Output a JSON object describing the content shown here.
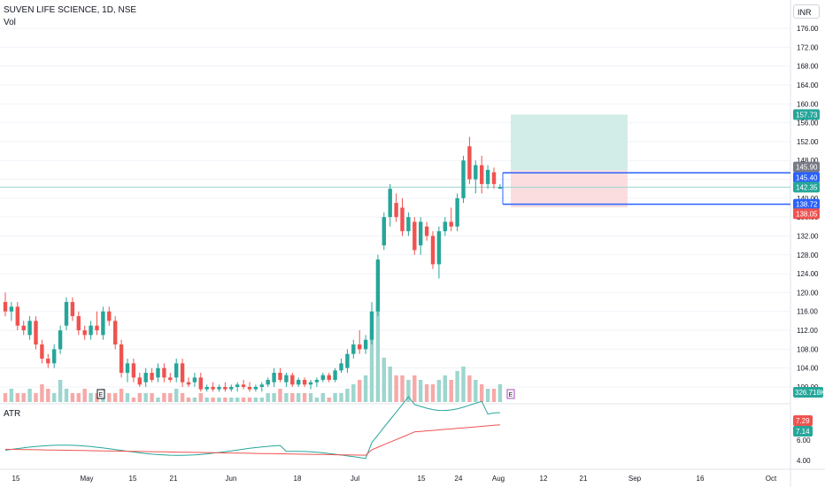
{
  "header": {
    "symbol_line": "SUVEN LIFE SCIENCE, 1D, NSE",
    "volume_label": "Vol",
    "atr_label": "ATR",
    "currency_label": "INR"
  },
  "colors": {
    "up": "#26a69a",
    "down": "#ef5350",
    "target_zone": "#d2ede8",
    "stop_zone": "#fbdde0",
    "line_blue": "#2962ff",
    "atr_green": "#26a69a",
    "atr_red": "#ef5350",
    "grid": "#f0f3fa"
  },
  "chart_data": {
    "type": "candlestick",
    "price_axis": {
      "ylim": [
        98,
        179
      ],
      "ticks": [
        "176.00",
        "172.00",
        "168.00",
        "164.00",
        "160.00",
        "156.00",
        "152.00",
        "148.00",
        "144.00",
        "140.00",
        "136.00",
        "132.00",
        "128.00",
        "124.00",
        "120.00",
        "116.00",
        "112.00",
        "108.00",
        "104.00",
        "100.00"
      ]
    },
    "x_ticks": [
      "15",
      "May",
      "15",
      "21",
      "Jun",
      "18",
      "Jul",
      "15",
      "24",
      "Aug",
      "12",
      "21",
      "Sep",
      "16",
      "Oct"
    ],
    "candles": [
      {
        "o": 118,
        "h": 120,
        "l": 115,
        "c": 116
      },
      {
        "o": 116,
        "h": 118,
        "l": 114,
        "c": 117
      },
      {
        "o": 117,
        "h": 118,
        "l": 112,
        "c": 113
      },
      {
        "o": 113,
        "h": 114,
        "l": 111,
        "c": 112
      },
      {
        "o": 111,
        "h": 115,
        "l": 110,
        "c": 114
      },
      {
        "o": 114,
        "h": 115,
        "l": 108,
        "c": 109
      },
      {
        "o": 109,
        "h": 110,
        "l": 105,
        "c": 106
      },
      {
        "o": 106,
        "h": 107,
        "l": 104,
        "c": 105
      },
      {
        "o": 105,
        "h": 109,
        "l": 104,
        "c": 108
      },
      {
        "o": 108,
        "h": 113,
        "l": 107,
        "c": 112
      },
      {
        "o": 113,
        "h": 119,
        "l": 112,
        "c": 118
      },
      {
        "o": 118,
        "h": 119,
        "l": 114,
        "c": 115
      },
      {
        "o": 115,
        "h": 116,
        "l": 111,
        "c": 112
      },
      {
        "o": 112,
        "h": 113,
        "l": 110,
        "c": 111
      },
      {
        "o": 111,
        "h": 114,
        "l": 110,
        "c": 113
      },
      {
        "o": 113,
        "h": 116,
        "l": 111,
        "c": 112
      },
      {
        "o": 111,
        "h": 117,
        "l": 110,
        "c": 116
      },
      {
        "o": 116,
        "h": 117,
        "l": 113,
        "c": 114
      },
      {
        "o": 114,
        "h": 115,
        "l": 108,
        "c": 109
      },
      {
        "o": 109,
        "h": 110,
        "l": 102,
        "c": 103
      },
      {
        "o": 103,
        "h": 106,
        "l": 101,
        "c": 105
      },
      {
        "o": 105,
        "h": 106,
        "l": 101,
        "c": 102
      },
      {
        "o": 102,
        "h": 103,
        "l": 100,
        "c": 100.5
      },
      {
        "o": 101,
        "h": 104,
        "l": 100,
        "c": 103
      },
      {
        "o": 103,
        "h": 104,
        "l": 101,
        "c": 101.5
      },
      {
        "o": 102,
        "h": 105,
        "l": 101,
        "c": 104
      },
      {
        "o": 104,
        "h": 105,
        "l": 101,
        "c": 102
      },
      {
        "o": 102,
        "h": 103,
        "l": 101,
        "c": 101.5
      },
      {
        "o": 102,
        "h": 106,
        "l": 101,
        "c": 105
      },
      {
        "o": 105,
        "h": 106,
        "l": 100,
        "c": 101
      },
      {
        "o": 101,
        "h": 102,
        "l": 100,
        "c": 100.5
      },
      {
        "o": 101,
        "h": 103,
        "l": 100,
        "c": 102
      },
      {
        "o": 102,
        "h": 103,
        "l": 99,
        "c": 99.5
      },
      {
        "o": 99.5,
        "h": 100.5,
        "l": 99,
        "c": 100
      },
      {
        "o": 100,
        "h": 101,
        "l": 99,
        "c": 99.5
      },
      {
        "o": 99.5,
        "h": 100.5,
        "l": 99,
        "c": 100
      },
      {
        "o": 100,
        "h": 101,
        "l": 99,
        "c": 99.5
      },
      {
        "o": 99.5,
        "h": 100.5,
        "l": 99,
        "c": 100
      },
      {
        "o": 100,
        "h": 101,
        "l": 99,
        "c": 100.5
      },
      {
        "o": 100.5,
        "h": 101.5,
        "l": 99.5,
        "c": 100
      },
      {
        "o": 100,
        "h": 101,
        "l": 99,
        "c": 99.5
      },
      {
        "o": 99.5,
        "h": 100.5,
        "l": 99,
        "c": 100
      },
      {
        "o": 100,
        "h": 101,
        "l": 99,
        "c": 100.5
      },
      {
        "o": 100.5,
        "h": 102,
        "l": 100,
        "c": 101.5
      },
      {
        "o": 101,
        "h": 104,
        "l": 100,
        "c": 103
      },
      {
        "o": 103,
        "h": 104,
        "l": 101,
        "c": 101.5
      },
      {
        "o": 101,
        "h": 103,
        "l": 100,
        "c": 102.5
      },
      {
        "o": 102.5,
        "h": 103,
        "l": 100,
        "c": 100.5
      },
      {
        "o": 100.5,
        "h": 102,
        "l": 100,
        "c": 101.5
      },
      {
        "o": 101.5,
        "h": 102,
        "l": 100,
        "c": 100.5
      },
      {
        "o": 100.5,
        "h": 101.5,
        "l": 99.5,
        "c": 101
      },
      {
        "o": 101,
        "h": 102,
        "l": 100,
        "c": 101.5
      },
      {
        "o": 101.5,
        "h": 103,
        "l": 101,
        "c": 102.5
      },
      {
        "o": 102.5,
        "h": 103,
        "l": 101,
        "c": 101.5
      },
      {
        "o": 101.5,
        "h": 104,
        "l": 101,
        "c": 103.5
      },
      {
        "o": 103.5,
        "h": 106,
        "l": 103,
        "c": 105
      },
      {
        "o": 104,
        "h": 108,
        "l": 103,
        "c": 107
      },
      {
        "o": 107,
        "h": 110,
        "l": 106,
        "c": 109
      },
      {
        "o": 109,
        "h": 112,
        "l": 107,
        "c": 108
      },
      {
        "o": 108,
        "h": 111,
        "l": 107,
        "c": 110
      },
      {
        "o": 110,
        "h": 118,
        "l": 109,
        "c": 116
      },
      {
        "o": 116,
        "h": 128,
        "l": 115,
        "c": 127
      },
      {
        "o": 130,
        "h": 137,
        "l": 129,
        "c": 136
      },
      {
        "o": 136,
        "h": 143,
        "l": 134,
        "c": 142
      },
      {
        "o": 139,
        "h": 141,
        "l": 135,
        "c": 136
      },
      {
        "o": 138,
        "h": 140,
        "l": 132,
        "c": 133
      },
      {
        "o": 133,
        "h": 137,
        "l": 132,
        "c": 136
      },
      {
        "o": 135,
        "h": 136,
        "l": 128,
        "c": 129
      },
      {
        "o": 130,
        "h": 136,
        "l": 128,
        "c": 135
      },
      {
        "o": 134,
        "h": 135,
        "l": 131,
        "c": 132
      },
      {
        "o": 132,
        "h": 133,
        "l": 125,
        "c": 126
      },
      {
        "o": 126,
        "h": 134,
        "l": 123,
        "c": 133
      },
      {
        "o": 133,
        "h": 136,
        "l": 132,
        "c": 135
      },
      {
        "o": 135,
        "h": 138,
        "l": 133,
        "c": 134
      },
      {
        "o": 134,
        "h": 141,
        "l": 133,
        "c": 140
      },
      {
        "o": 140,
        "h": 149,
        "l": 139,
        "c": 148
      },
      {
        "o": 151,
        "h": 153,
        "l": 143,
        "c": 144
      },
      {
        "o": 144,
        "h": 148,
        "l": 141,
        "c": 147
      },
      {
        "o": 147,
        "h": 149,
        "l": 141,
        "c": 143
      },
      {
        "o": 143,
        "h": 147,
        "l": 142,
        "c": 146
      },
      {
        "o": 145.5,
        "h": 146.5,
        "l": 142,
        "c": 143
      },
      {
        "o": 142,
        "h": 143,
        "l": 142,
        "c": 142.35
      }
    ],
    "volume": {
      "label": "326.718K",
      "bars": [
        2,
        3,
        2,
        2,
        3,
        2,
        4,
        3,
        2,
        5,
        3,
        2,
        2,
        3,
        2,
        2,
        3,
        2,
        2,
        3,
        2,
        1,
        2,
        2,
        2,
        1,
        2,
        2,
        3,
        2,
        1,
        1,
        2,
        1,
        1,
        1,
        1,
        1,
        1,
        1,
        1,
        1,
        1,
        2,
        2,
        3,
        2,
        2,
        2,
        2,
        2,
        1,
        2,
        1,
        2,
        2,
        3,
        4,
        5,
        6,
        16,
        22,
        10,
        8,
        6,
        6,
        5,
        6,
        5,
        4,
        4,
        5,
        6,
        5,
        7,
        8,
        6,
        5,
        4,
        3,
        3,
        4
      ]
    },
    "atr": {
      "label": "ATR",
      "values": [
        "7.29",
        "7.14"
      ],
      "ticks": [
        "6.00",
        "4.00"
      ],
      "ylim": [
        3.5,
        10.5
      ]
    },
    "position": {
      "entry": 142.35,
      "target": 157.73,
      "stop": 138.05,
      "price_labels": [
        "157.73",
        "145.90",
        "145.40",
        "142.35",
        "138.72",
        "138.05"
      ]
    }
  }
}
